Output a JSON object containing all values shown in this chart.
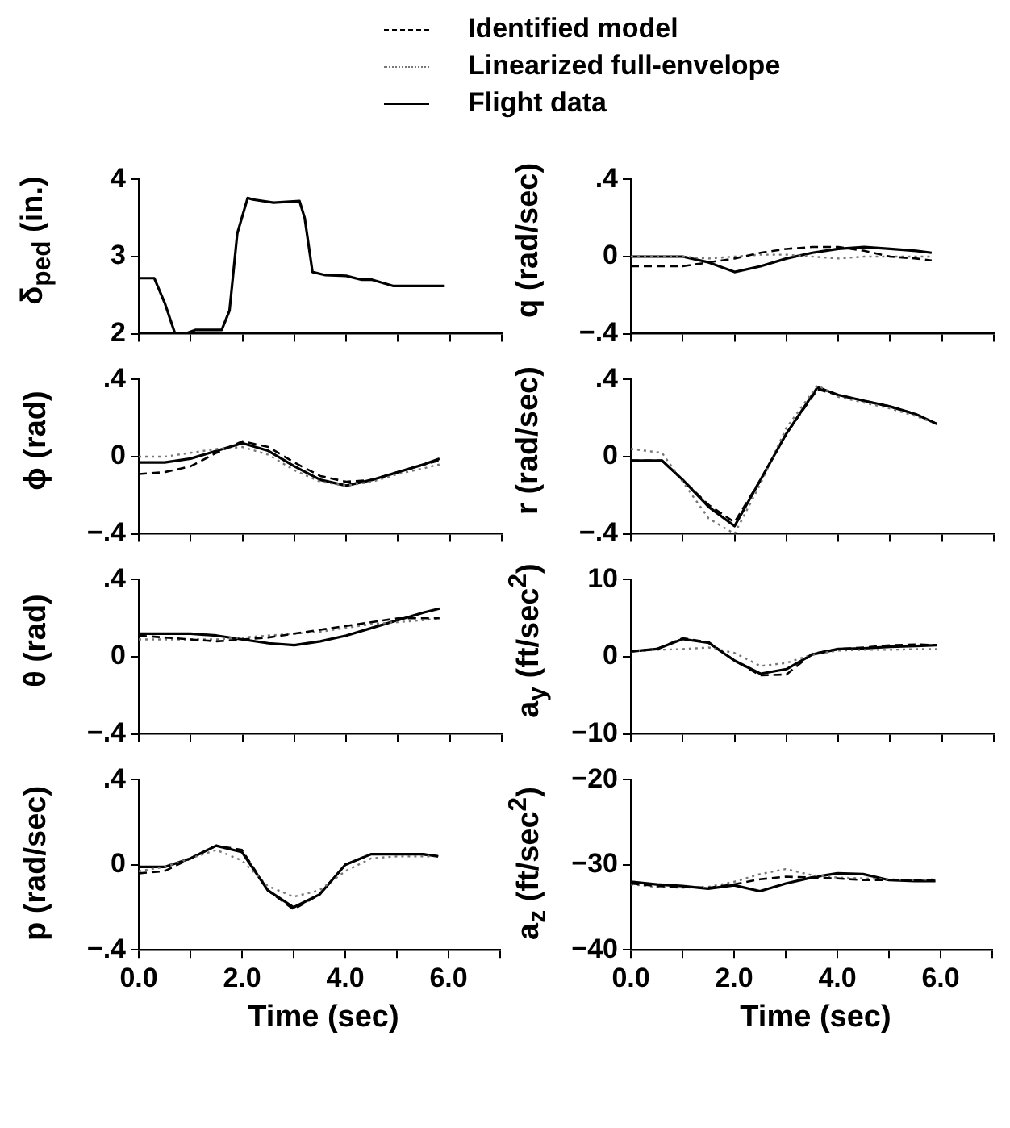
{
  "chart_data": [
    {
      "type": "line",
      "ylabel": "δ$_{ped}$ (in.)",
      "x": [
        0,
        0.3,
        0.5,
        0.7,
        0.9,
        1.1,
        1.6,
        1.75,
        1.9,
        2.1,
        2.2,
        2.6,
        3.1,
        3.2,
        3.35,
        3.6,
        4.0,
        4.3,
        4.5,
        4.9,
        5.9
      ],
      "xlim": [
        0,
        7
      ],
      "ylim": [
        2,
        4
      ],
      "yticks": [
        2,
        3,
        4
      ],
      "tick_labels": "y",
      "grid": false,
      "marker": "none",
      "series": [
        {
          "color": "#000000",
          "line_style": "solid",
          "values": [
            2.72,
            2.72,
            2.4,
            2.0,
            2.0,
            2.05,
            2.05,
            2.3,
            3.3,
            3.76,
            3.74,
            3.7,
            3.72,
            3.5,
            2.8,
            2.76,
            2.75,
            2.7,
            2.7,
            2.62,
            2.62
          ]
        }
      ]
    },
    {
      "type": "line",
      "ylabel": "q (rad/sec)",
      "legend": "top",
      "x": [
        0,
        0.5,
        1.0,
        1.5,
        2.0,
        2.5,
        3.0,
        3.5,
        4.0,
        4.5,
        5.0,
        5.5,
        5.8
      ],
      "xlim": [
        0,
        7
      ],
      "ylim": [
        -0.4,
        0.4
      ],
      "yticks": [
        {
          "value": -0.4,
          "label": "−.4"
        },
        0,
        {
          "value": 0.4,
          "label": ".4"
        }
      ],
      "tick_labels": "y",
      "grid": false,
      "marker": "none",
      "series": [
        {
          "name": "Identified model",
          "color": "#000000",
          "line_style": "dashed",
          "values": [
            -0.05,
            -0.05,
            -0.05,
            -0.03,
            -0.01,
            0.02,
            0.04,
            0.05,
            0.05,
            0.03,
            0.0,
            -0.01,
            -0.02
          ]
        },
        {
          "name": "Linearized full-envelope",
          "color": "#777777",
          "line_style": "dotted",
          "values": [
            0,
            0,
            0,
            -0.01,
            0.0,
            0.01,
            0.01,
            0.0,
            -0.01,
            0.0,
            0.0,
            0.0,
            0.0
          ]
        },
        {
          "name": "Flight data",
          "color": "#000000",
          "line_style": "solid",
          "values": [
            0,
            0,
            0,
            -0.03,
            -0.08,
            -0.05,
            -0.01,
            0.02,
            0.04,
            0.05,
            0.04,
            0.03,
            0.02
          ]
        }
      ]
    },
    {
      "type": "line",
      "ylabel": "ϕ (rad)",
      "x": [
        0,
        0.5,
        1.0,
        1.5,
        2.0,
        2.5,
        3.0,
        3.5,
        4.0,
        4.5,
        5.0,
        5.5,
        5.8
      ],
      "xlim": [
        0,
        7
      ],
      "ylim": [
        -0.4,
        0.4
      ],
      "yticks": [
        {
          "value": -0.4,
          "label": "−.4"
        },
        0,
        {
          "value": 0.4,
          "label": ".4"
        }
      ],
      "tick_labels": "y",
      "grid": false,
      "marker": "none",
      "series": [
        {
          "color": "#000000",
          "line_style": "dashed",
          "values": [
            -0.09,
            -0.08,
            -0.05,
            0.02,
            0.08,
            0.05,
            -0.03,
            -0.1,
            -0.13,
            -0.12,
            -0.08,
            -0.04,
            -0.02
          ]
        },
        {
          "color": "#777777",
          "line_style": "dotted",
          "values": [
            0.0,
            0.0,
            0.02,
            0.04,
            0.05,
            0.01,
            -0.07,
            -0.13,
            -0.15,
            -0.13,
            -0.09,
            -0.06,
            -0.04
          ]
        },
        {
          "color": "#000000",
          "line_style": "solid",
          "values": [
            -0.03,
            -0.03,
            -0.01,
            0.03,
            0.07,
            0.03,
            -0.05,
            -0.12,
            -0.15,
            -0.12,
            -0.08,
            -0.04,
            -0.01
          ]
        }
      ]
    },
    {
      "type": "line",
      "ylabel": "r (rad/sec)",
      "x": [
        0,
        0.6,
        1.0,
        1.5,
        2.0,
        2.5,
        3.0,
        3.6,
        4.0,
        4.5,
        5.0,
        5.5,
        5.9
      ],
      "xlim": [
        0,
        7
      ],
      "ylim": [
        -0.4,
        0.4
      ],
      "yticks": [
        {
          "value": -0.4,
          "label": "−.4"
        },
        0,
        {
          "value": 0.4,
          "label": ".4"
        }
      ],
      "tick_labels": "y",
      "grid": false,
      "marker": "none",
      "series": [
        {
          "color": "#000000",
          "line_style": "dashed",
          "values": [
            -0.02,
            -0.02,
            -0.12,
            -0.25,
            -0.34,
            -0.12,
            0.12,
            0.35,
            0.32,
            0.29,
            0.26,
            0.22,
            0.17
          ]
        },
        {
          "color": "#777777",
          "line_style": "dotted",
          "values": [
            0.04,
            0.02,
            -0.13,
            -0.32,
            -0.4,
            -0.14,
            0.15,
            0.37,
            0.31,
            0.28,
            0.25,
            0.21,
            0.17
          ]
        },
        {
          "color": "#000000",
          "line_style": "solid",
          "values": [
            -0.02,
            -0.02,
            -0.12,
            -0.26,
            -0.36,
            -0.12,
            0.12,
            0.36,
            0.32,
            0.29,
            0.26,
            0.22,
            0.17
          ]
        }
      ]
    },
    {
      "type": "line",
      "ylabel": "θ (rad)",
      "x": [
        0,
        0.5,
        1.0,
        1.5,
        2.0,
        2.5,
        3.0,
        3.5,
        4.0,
        4.5,
        5.0,
        5.5,
        5.8
      ],
      "xlim": [
        0,
        7
      ],
      "ylim": [
        -0.4,
        0.4
      ],
      "yticks": [
        {
          "value": -0.4,
          "label": "−.4"
        },
        0,
        {
          "value": 0.4,
          "label": ".4"
        }
      ],
      "tick_labels": "y",
      "grid": false,
      "marker": "none",
      "series": [
        {
          "color": "#000000",
          "line_style": "dashed",
          "values": [
            0.11,
            0.1,
            0.09,
            0.08,
            0.09,
            0.1,
            0.12,
            0.14,
            0.16,
            0.18,
            0.2,
            0.2,
            0.2
          ]
        },
        {
          "color": "#777777",
          "line_style": "dotted",
          "values": [
            0.09,
            0.09,
            0.09,
            0.09,
            0.1,
            0.11,
            0.12,
            0.13,
            0.15,
            0.17,
            0.18,
            0.19,
            0.2
          ]
        },
        {
          "color": "#000000",
          "line_style": "solid",
          "values": [
            0.12,
            0.12,
            0.12,
            0.11,
            0.09,
            0.07,
            0.06,
            0.08,
            0.11,
            0.15,
            0.19,
            0.23,
            0.25
          ]
        }
      ]
    },
    {
      "type": "line",
      "ylabel": "a$_{y}$ (ft/sec$^{2}$)",
      "x": [
        0,
        0.5,
        1.0,
        1.5,
        2.0,
        2.5,
        3.0,
        3.5,
        4.0,
        4.5,
        5.0,
        5.5,
        5.9
      ],
      "xlim": [
        0,
        7
      ],
      "ylim": [
        -10,
        10
      ],
      "yticks": [
        {
          "value": -10,
          "label": "−10"
        },
        0,
        10
      ],
      "tick_labels": "y",
      "grid": false,
      "marker": "none",
      "series": [
        {
          "color": "#000000",
          "line_style": "dashed",
          "values": [
            0.7,
            1.0,
            2.4,
            1.9,
            -0.5,
            -2.4,
            -2.3,
            0.4,
            1.0,
            1.2,
            1.5,
            1.6,
            1.5
          ]
        },
        {
          "color": "#777777",
          "line_style": "dotted",
          "values": [
            0.7,
            0.9,
            1.0,
            1.2,
            0.5,
            -1.2,
            -0.8,
            0.3,
            0.8,
            0.9,
            0.9,
            1.0,
            1.0
          ]
        },
        {
          "color": "#000000",
          "line_style": "solid",
          "values": [
            0.7,
            1.0,
            2.3,
            1.8,
            -0.5,
            -2.2,
            -1.6,
            0.3,
            1.0,
            1.1,
            1.3,
            1.4,
            1.5
          ]
        }
      ]
    },
    {
      "type": "line",
      "ylabel": "p (rad/sec)",
      "xlabel": "Time (sec)",
      "x": [
        0,
        0.5,
        1.0,
        1.5,
        2.0,
        2.5,
        3.0,
        3.5,
        4.0,
        4.5,
        5.0,
        5.5,
        5.8
      ],
      "xlim": [
        0,
        7
      ],
      "xticks": [
        {
          "value": 0,
          "label": "0.0"
        },
        {
          "value": 1,
          "label": null
        },
        {
          "value": 2,
          "label": "2.0"
        },
        {
          "value": 3,
          "label": null
        },
        {
          "value": 4,
          "label": "4.0"
        },
        {
          "value": 5,
          "label": null
        },
        {
          "value": 6,
          "label": "6.0"
        },
        {
          "value": 7,
          "label": null
        }
      ],
      "ylim": [
        -0.4,
        0.4
      ],
      "yticks": [
        {
          "value": -0.4,
          "label": "−.4"
        },
        0,
        {
          "value": 0.4,
          "label": ".4"
        }
      ],
      "grid": false,
      "marker": "none",
      "series": [
        {
          "color": "#000000",
          "line_style": "dashed",
          "values": [
            -0.04,
            -0.03,
            0.03,
            0.09,
            0.07,
            -0.12,
            -0.21,
            -0.14,
            0.0,
            0.05,
            0.05,
            0.05,
            0.04
          ]
        },
        {
          "color": "#777777",
          "line_style": "dotted",
          "values": [
            -0.03,
            -0.01,
            0.03,
            0.07,
            0.02,
            -0.1,
            -0.15,
            -0.12,
            -0.03,
            0.03,
            0.04,
            0.04,
            0.04
          ]
        },
        {
          "color": "#000000",
          "line_style": "solid",
          "values": [
            -0.01,
            -0.01,
            0.03,
            0.09,
            0.06,
            -0.12,
            -0.2,
            -0.14,
            0.0,
            0.05,
            0.05,
            0.05,
            0.04
          ]
        }
      ]
    },
    {
      "type": "line",
      "ylabel": "a$_{z}$ (ft/sec$^{2}$)",
      "xlabel": "Time (sec)",
      "x": [
        0,
        0.5,
        1.0,
        1.5,
        2.0,
        2.5,
        3.0,
        3.5,
        4.0,
        4.5,
        5.0,
        5.5,
        5.9
      ],
      "xlim": [
        0,
        7
      ],
      "xticks": [
        {
          "value": 0,
          "label": "0.0"
        },
        {
          "value": 1,
          "label": null
        },
        {
          "value": 2,
          "label": "2.0"
        },
        {
          "value": 3,
          "label": null
        },
        {
          "value": 4,
          "label": "4.0"
        },
        {
          "value": 5,
          "label": null
        },
        {
          "value": 6,
          "label": "6.0"
        },
        {
          "value": 7,
          "label": null
        }
      ],
      "ylim": [
        -40,
        -20
      ],
      "yticks": [
        {
          "value": -40,
          "label": "−40"
        },
        {
          "value": -30,
          "label": "−30"
        },
        {
          "value": -20,
          "label": "−20"
        }
      ],
      "grid": false,
      "marker": "none",
      "series": [
        {
          "color": "#000000",
          "line_style": "dashed",
          "values": [
            -32.2,
            -32.5,
            -32.6,
            -32.7,
            -32.3,
            -31.7,
            -31.4,
            -31.5,
            -31.6,
            -31.8,
            -31.8,
            -31.8,
            -31.8
          ]
        },
        {
          "color": "#777777",
          "line_style": "dotted",
          "values": [
            -32.3,
            -32.6,
            -32.7,
            -32.6,
            -32.0,
            -31.1,
            -30.5,
            -31.2,
            -31.5,
            -31.6,
            -31.7,
            -31.8,
            -31.7
          ]
        },
        {
          "color": "#000000",
          "line_style": "solid",
          "values": [
            -32.0,
            -32.3,
            -32.5,
            -32.8,
            -32.4,
            -33.1,
            -32.2,
            -31.5,
            -31.0,
            -31.1,
            -31.8,
            -31.9,
            -31.9
          ]
        }
      ]
    }
  ]
}
